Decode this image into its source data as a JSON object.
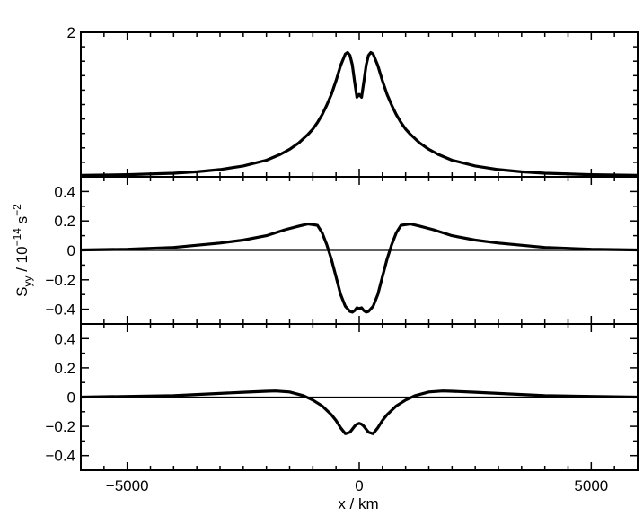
{
  "chart_data": {
    "type": "line",
    "xlabel": "x / km",
    "ylabel": "S_yy / 10^-14 s^-2",
    "ylabel_parts": {
      "s": "S",
      "sub": "yy",
      "mid": " / 10",
      "exp": "−14",
      "unit": " s",
      "unit_exp": "−2"
    },
    "xlim": [
      -6000,
      6000
    ],
    "xticks": [
      -5000,
      0,
      5000
    ],
    "xtick_labels": [
      "−5000",
      "0",
      "5000"
    ],
    "grid": false,
    "legend": "none",
    "line_color": "#000000",
    "panels": [
      {
        "name": "top",
        "ylim": [
          0,
          2
        ],
        "yticks": [
          2
        ],
        "ytick_labels": [
          "2"
        ],
        "zero_line": false,
        "series": [
          {
            "style": "solid",
            "x": [
              -6000,
              -5000,
              -4000,
              -3500,
              -3000,
              -2500,
              -2000,
              -1700,
              -1500,
              -1300,
              -1100,
              -1000,
              -900,
              -800,
              -700,
              -600,
              -500,
              -400,
              -300,
              -250,
              -200,
              -150,
              -100,
              -50,
              0,
              50,
              100,
              150,
              200,
              250,
              300,
              400,
              500,
              600,
              700,
              800,
              900,
              1000,
              1100,
              1300,
              1500,
              1700,
              2000,
              2500,
              3000,
              3500,
              4000,
              5000,
              6000
            ],
            "y": [
              0.02,
              0.03,
              0.05,
              0.07,
              0.1,
              0.15,
              0.23,
              0.31,
              0.38,
              0.47,
              0.59,
              0.66,
              0.75,
              0.86,
              0.99,
              1.14,
              1.33,
              1.54,
              1.7,
              1.72,
              1.68,
              1.55,
              1.32,
              1.1,
              1.14,
              1.1,
              1.32,
              1.55,
              1.68,
              1.72,
              1.7,
              1.54,
              1.33,
              1.14,
              0.99,
              0.86,
              0.75,
              0.66,
              0.59,
              0.47,
              0.38,
              0.31,
              0.23,
              0.15,
              0.1,
              0.07,
              0.05,
              0.03,
              0.02
            ]
          },
          {
            "style": "dashed",
            "x": [
              -6000,
              -5000,
              -4000,
              -3500,
              -3000,
              -2500,
              -2000,
              -1700,
              -1500,
              -1300,
              -1100,
              -1000,
              -900,
              -800,
              -700,
              -600,
              -500,
              -400,
              -300,
              -250,
              -200,
              -150,
              -100,
              -50,
              0,
              50,
              100,
              150,
              200,
              250,
              300,
              400,
              500,
              600,
              700,
              800,
              900,
              1000,
              1100,
              1300,
              1500,
              1700,
              2000,
              2500,
              3000,
              3500,
              4000,
              5000,
              6000
            ],
            "y": [
              0.02,
              0.03,
              0.05,
              0.07,
              0.1,
              0.15,
              0.23,
              0.31,
              0.38,
              0.47,
              0.59,
              0.66,
              0.75,
              0.86,
              0.99,
              1.14,
              1.33,
              1.54,
              1.7,
              1.72,
              1.68,
              1.55,
              1.32,
              1.1,
              1.14,
              1.1,
              1.32,
              1.55,
              1.68,
              1.72,
              1.7,
              1.54,
              1.33,
              1.14,
              0.99,
              0.86,
              0.75,
              0.66,
              0.59,
              0.47,
              0.38,
              0.31,
              0.23,
              0.15,
              0.1,
              0.07,
              0.05,
              0.03,
              0.02
            ]
          }
        ]
      },
      {
        "name": "middle",
        "ylim": [
          -0.5,
          0.5
        ],
        "yticks": [
          0.4,
          0.2,
          0,
          -0.2,
          -0.4
        ],
        "ytick_labels": [
          "0.4",
          "0.2",
          "0",
          "−0.2",
          "−0.4"
        ],
        "zero_line": true,
        "series": [
          {
            "style": "solid",
            "x": [
              -6000,
              -5000,
              -4000,
              -3000,
              -2500,
              -2000,
              -1600,
              -1300,
              -1100,
              -900,
              -800,
              -700,
              -600,
              -500,
              -400,
              -300,
              -200,
              -150,
              -100,
              -50,
              0,
              50,
              100,
              150,
              200,
              300,
              400,
              500,
              600,
              700,
              800,
              900,
              1100,
              1300,
              1600,
              2000,
              2500,
              3000,
              4000,
              5000,
              6000
            ],
            "y": [
              0.003,
              0.008,
              0.02,
              0.05,
              0.07,
              0.1,
              0.14,
              0.165,
              0.18,
              0.17,
              0.12,
              0.04,
              -0.06,
              -0.18,
              -0.3,
              -0.38,
              -0.415,
              -0.42,
              -0.41,
              -0.39,
              -0.395,
              -0.39,
              -0.41,
              -0.42,
              -0.415,
              -0.38,
              -0.3,
              -0.18,
              -0.06,
              0.04,
              0.12,
              0.17,
              0.18,
              0.165,
              0.14,
              0.1,
              0.07,
              0.05,
              0.02,
              0.008,
              0.003
            ]
          },
          {
            "style": "dashed",
            "x": [
              -6000,
              -5000,
              -4000,
              -3000,
              -2500,
              -2000,
              -1600,
              -1300,
              -1100,
              -900,
              -800,
              -700,
              -600,
              -500,
              -400,
              -300,
              -200,
              -150,
              -100,
              -50,
              0,
              50,
              100,
              150,
              200,
              300,
              400,
              500,
              600,
              700,
              800,
              900,
              1100,
              1300,
              1600,
              2000,
              2500,
              3000,
              4000,
              5000,
              6000
            ],
            "y": [
              0.003,
              0.008,
              0.02,
              0.05,
              0.07,
              0.1,
              0.14,
              0.165,
              0.18,
              0.17,
              0.12,
              0.04,
              -0.06,
              -0.18,
              -0.3,
              -0.38,
              -0.415,
              -0.42,
              -0.41,
              -0.39,
              -0.395,
              -0.39,
              -0.41,
              -0.42,
              -0.415,
              -0.38,
              -0.3,
              -0.18,
              -0.06,
              0.04,
              0.12,
              0.17,
              0.18,
              0.165,
              0.14,
              0.1,
              0.07,
              0.05,
              0.02,
              0.008,
              0.003
            ]
          }
        ]
      },
      {
        "name": "bottom",
        "ylim": [
          -0.5,
          0.5
        ],
        "yticks": [
          0.4,
          0.2,
          0,
          -0.2,
          -0.4
        ],
        "ytick_labels": [
          "0.4",
          "0.2",
          "0",
          "−0.2",
          "−0.4"
        ],
        "zero_line": true,
        "series": [
          {
            "style": "solid",
            "x": [
              -6000,
              -5000,
              -4000,
              -3000,
              -2500,
              -2000,
              -1800,
              -1500,
              -1200,
              -1000,
              -800,
              -600,
              -500,
              -400,
              -300,
              -200,
              -100,
              -50,
              0,
              50,
              100,
              200,
              300,
              400,
              500,
              600,
              800,
              1000,
              1200,
              1500,
              1800,
              2000,
              2500,
              3000,
              4000,
              5000,
              6000
            ],
            "y": [
              0.0,
              0.005,
              0.01,
              0.025,
              0.033,
              0.04,
              0.042,
              0.035,
              0.01,
              -0.02,
              -0.06,
              -0.12,
              -0.16,
              -0.21,
              -0.25,
              -0.24,
              -0.2,
              -0.185,
              -0.18,
              -0.185,
              -0.2,
              -0.24,
              -0.25,
              -0.21,
              -0.16,
              -0.12,
              -0.06,
              -0.02,
              0.01,
              0.035,
              0.042,
              0.04,
              0.033,
              0.025,
              0.01,
              0.005,
              0.0
            ]
          },
          {
            "style": "dashed",
            "x": [
              -6000,
              -5000,
              -4000,
              -3000,
              -2500,
              -2000,
              -1800,
              -1500,
              -1200,
              -1000,
              -800,
              -600,
              -500,
              -400,
              -300,
              -200,
              -100,
              -50,
              0,
              50,
              100,
              200,
              300,
              400,
              500,
              600,
              800,
              1000,
              1200,
              1500,
              1800,
              2000,
              2500,
              3000,
              4000,
              5000,
              6000
            ],
            "y": [
              0.0,
              0.005,
              0.01,
              0.025,
              0.033,
              0.04,
              0.042,
              0.035,
              0.01,
              -0.02,
              -0.06,
              -0.12,
              -0.16,
              -0.21,
              -0.25,
              -0.24,
              -0.2,
              -0.185,
              -0.18,
              -0.185,
              -0.2,
              -0.24,
              -0.25,
              -0.21,
              -0.16,
              -0.12,
              -0.06,
              -0.02,
              0.01,
              0.035,
              0.042,
              0.04,
              0.033,
              0.025,
              0.01,
              0.005,
              0.0
            ]
          }
        ]
      }
    ]
  }
}
